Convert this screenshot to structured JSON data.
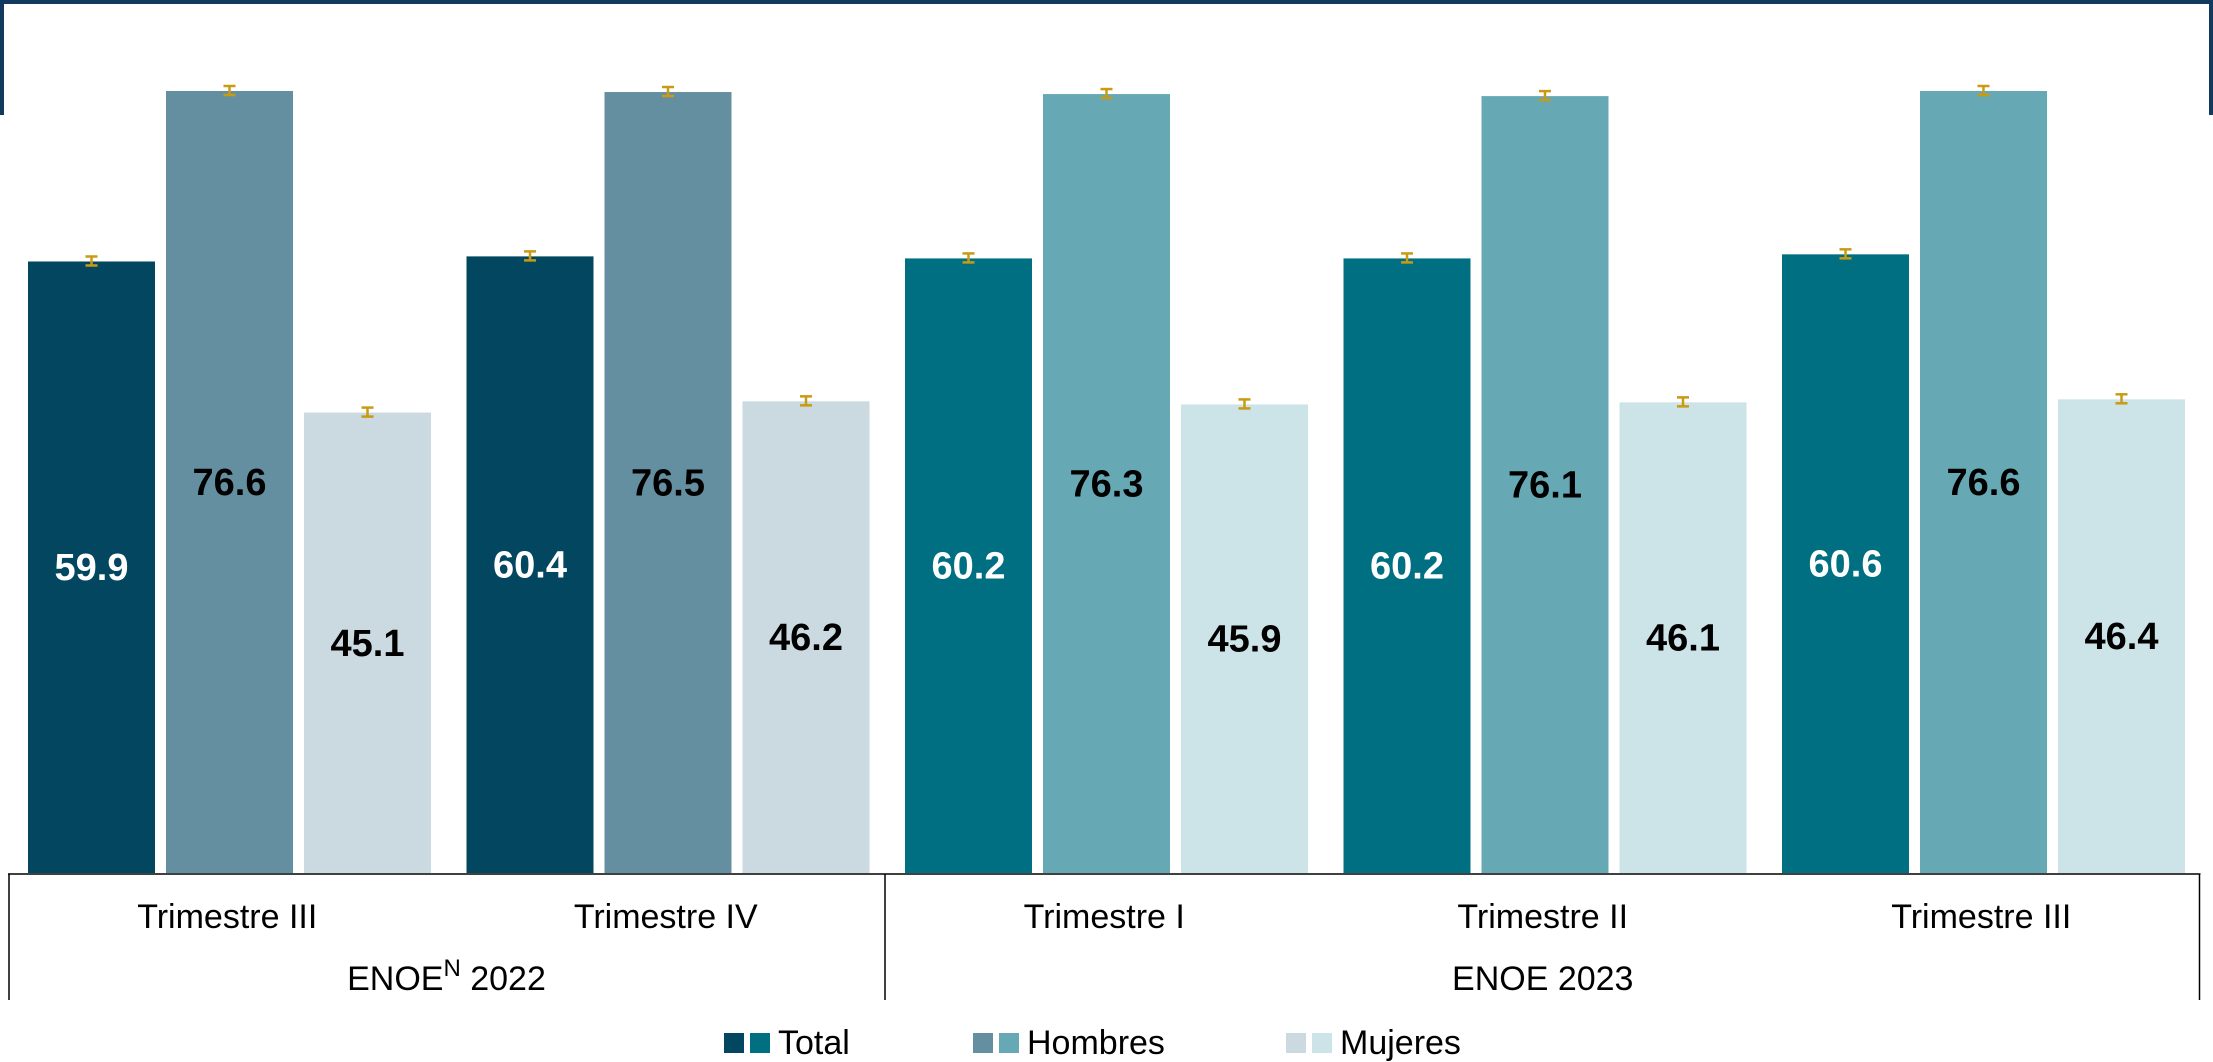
{
  "chart_data": {
    "type": "bar",
    "ylim": [
      0,
      80
    ],
    "grid": false,
    "legend_position": "bottom-center",
    "groups": [
      {
        "label": "ENOE",
        "label_superscript": "N",
        "label_suffix": " 2022",
        "palette": {
          "Total": "#02475f",
          "Hombres": "#648fa0",
          "Mujeres": "#cbd9e0"
        },
        "categories": [
          "Trimestre III",
          "Trimestre IV"
        ]
      },
      {
        "label": "ENOE",
        "label_superscript": "",
        "label_suffix": " 2023",
        "palette": {
          "Total": "#006f82",
          "Hombres": "#66a9b5",
          "Mujeres": "#cce3e8"
        },
        "categories": [
          "Trimestre I",
          "Trimestre II",
          "Trimestre III"
        ]
      }
    ],
    "series": [
      {
        "name": "Total",
        "values": [
          59.9,
          60.4,
          60.2,
          60.2,
          60.6
        ],
        "labels": [
          "59.9",
          "60.4",
          "60.2",
          "60.2",
          "60.6"
        ],
        "label_color": "#ffffff"
      },
      {
        "name": "Hombres",
        "values": [
          76.6,
          76.5,
          76.3,
          76.1,
          76.6
        ],
        "labels": [
          "76.6",
          "76.5",
          "76.3",
          "76.1",
          "76.6"
        ],
        "label_color": "#000000"
      },
      {
        "name": "Mujeres",
        "values": [
          45.1,
          46.2,
          45.9,
          46.1,
          46.4
        ],
        "labels": [
          "45.1",
          "46.2",
          "45.9",
          "46.1",
          "46.4"
        ],
        "label_color": "#000000"
      }
    ],
    "error_bar_color": "#c99a12",
    "frame_color": "#123a5f"
  }
}
